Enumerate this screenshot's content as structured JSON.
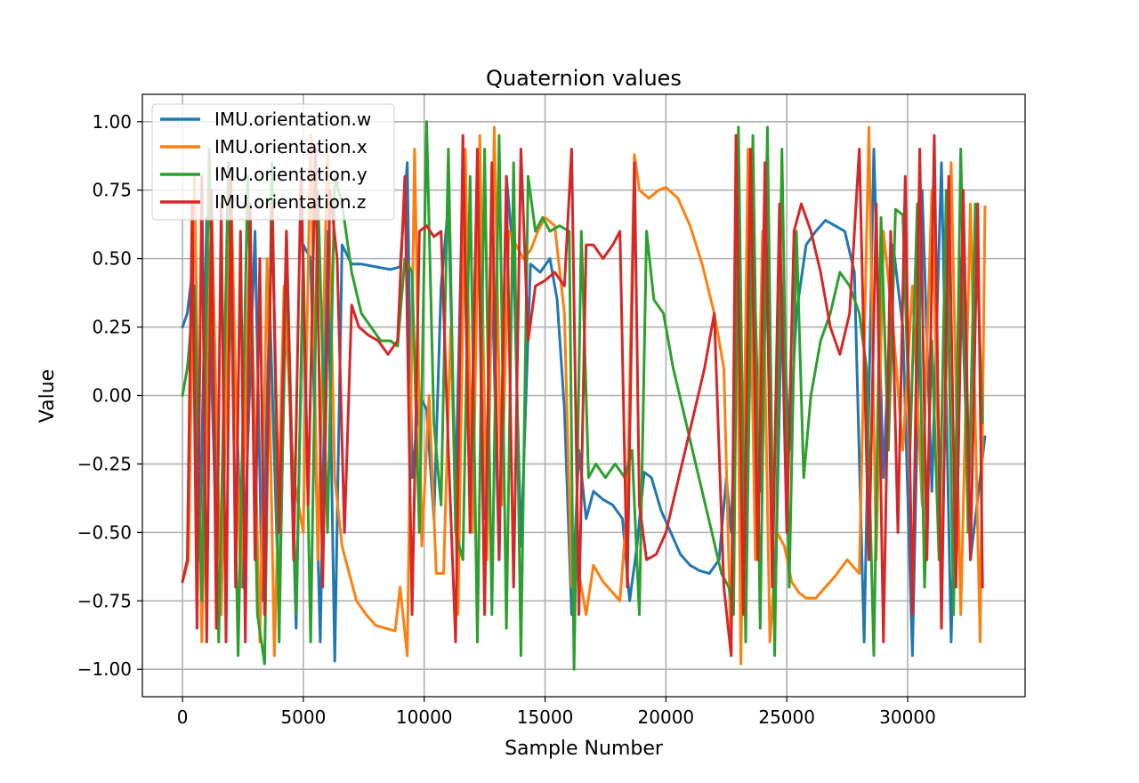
{
  "chart_data": {
    "type": "line",
    "title": "Quaternion values",
    "xlabel": "Sample Number",
    "ylabel": "Value",
    "xlim": [
      -1660,
      34860
    ],
    "ylim": [
      -1.1,
      1.1
    ],
    "xticks": [
      0,
      5000,
      10000,
      15000,
      20000,
      25000,
      30000
    ],
    "xtick_labels": [
      "0",
      "5000",
      "10000",
      "15000",
      "20000",
      "25000",
      "30000"
    ],
    "yticks": [
      -1.0,
      -0.75,
      -0.5,
      -0.25,
      0.0,
      0.25,
      0.5,
      0.75,
      1.0
    ],
    "ytick_labels": [
      "−1.00",
      "−0.75",
      "−0.50",
      "−0.25",
      "0.00",
      "0.25",
      "0.50",
      "0.75",
      "1.00"
    ],
    "grid": true,
    "legend_position": "top-left",
    "series": [
      {
        "name": "IMU.orientation.w",
        "color": "#1f77b4",
        "x": [
          0,
          200,
          400,
          700,
          1000,
          1500,
          2000,
          2500,
          3000,
          3300,
          3600,
          4000,
          4300,
          4700,
          5000,
          5300,
          5700,
          6000,
          6300,
          6600,
          7000,
          7400,
          8000,
          8600,
          9000,
          9300,
          9500,
          9800,
          10100,
          10400,
          10700,
          11000,
          11300,
          11600,
          11900,
          12200,
          12500,
          12800,
          13100,
          13400,
          13700,
          14000,
          14400,
          14800,
          15200,
          15500,
          15800,
          16100,
          16400,
          16700,
          17000,
          17400,
          17800,
          18200,
          18500,
          18800,
          19100,
          19400,
          19800,
          20200,
          20600,
          21000,
          21400,
          21800,
          22200,
          22500,
          22700,
          23000,
          23300,
          23600,
          23900,
          24200,
          24500,
          24800,
          25100,
          25400,
          25800,
          26200,
          26600,
          27000,
          27400,
          27800,
          28200,
          28600,
          29000,
          29400,
          29800,
          30200,
          30600,
          31000,
          31400,
          31800,
          32200,
          32600,
          33000,
          33200
        ],
        "y": [
          0.25,
          0.3,
          0.45,
          -0.6,
          0.65,
          -0.8,
          0.5,
          -0.7,
          0.6,
          -0.75,
          0.35,
          -0.8,
          0.45,
          -0.85,
          0.55,
          0.5,
          -0.9,
          0.6,
          -0.97,
          0.55,
          0.48,
          0.48,
          0.47,
          0.46,
          0.47,
          0.85,
          -0.3,
          0.0,
          -0.05,
          -0.45,
          0.4,
          0.7,
          -0.35,
          0.8,
          -0.4,
          0.85,
          -0.45,
          0.45,
          -0.6,
          0.8,
          0.5,
          -0.55,
          0.48,
          0.45,
          0.5,
          0.35,
          -0.05,
          -0.8,
          -0.2,
          -0.45,
          -0.35,
          -0.38,
          -0.4,
          -0.45,
          -0.75,
          -0.55,
          -0.28,
          -0.3,
          -0.42,
          -0.5,
          -0.58,
          -0.62,
          -0.64,
          -0.65,
          -0.6,
          -0.3,
          -0.5,
          0.4,
          -0.7,
          0.65,
          -0.35,
          0.55,
          -0.85,
          0.4,
          -0.2,
          0.3,
          0.55,
          0.6,
          0.64,
          0.62,
          0.6,
          0.45,
          -0.9,
          0.9,
          -0.3,
          0.55,
          0.25,
          -0.95,
          0.75,
          -0.35,
          0.85,
          -0.9,
          0.5,
          -0.6,
          -0.3,
          -0.15
        ]
      },
      {
        "name": "IMU.orientation.x",
        "color": "#ff7f0e",
        "x": [
          0,
          250,
          500,
          800,
          1200,
          1600,
          2000,
          2400,
          2800,
          3200,
          3500,
          3800,
          4200,
          4600,
          5000,
          5300,
          5600,
          6000,
          6300,
          6600,
          6900,
          7200,
          7600,
          8000,
          8400,
          8800,
          9000,
          9300,
          9600,
          9900,
          10200,
          10500,
          10800,
          11100,
          11400,
          11700,
          12000,
          12300,
          12600,
          12900,
          13200,
          13500,
          13800,
          14100,
          14400,
          14700,
          15000,
          15400,
          15800,
          16100,
          16400,
          16700,
          17000,
          17400,
          17800,
          18100,
          18400,
          18700,
          18900,
          19300,
          19700,
          20000,
          20500,
          21000,
          21500,
          22000,
          22400,
          22700,
          22900,
          23100,
          23400,
          23700,
          24000,
          24300,
          24600,
          24900,
          25200,
          25500,
          25800,
          26200,
          26600,
          27000,
          27500,
          28000,
          28400,
          28700,
          29000,
          29400,
          29800,
          30200,
          30600,
          31000,
          31400,
          31800,
          32200,
          32600,
          33000,
          33200
        ],
        "y": [
          -0.68,
          -0.6,
          0.8,
          -0.9,
          0.7,
          -0.8,
          0.8,
          -0.7,
          0.6,
          -0.9,
          0.5,
          -0.95,
          0.4,
          -0.3,
          -0.5,
          0.95,
          -0.6,
          0.9,
          -0.3,
          -0.55,
          -0.65,
          -0.75,
          -0.8,
          -0.84,
          -0.85,
          -0.86,
          -0.7,
          -0.95,
          0.9,
          -0.55,
          0.0,
          -0.65,
          -0.65,
          0.25,
          -0.8,
          0.9,
          -0.5,
          0.95,
          -0.6,
          0.98,
          -0.4,
          0.6,
          0.55,
          0.5,
          0.53,
          0.6,
          0.65,
          0.62,
          0.3,
          -0.7,
          -0.65,
          -0.8,
          -0.62,
          -0.68,
          -0.72,
          -0.75,
          -0.4,
          0.88,
          0.75,
          0.72,
          0.75,
          0.76,
          0.72,
          0.62,
          0.48,
          0.3,
          0.1,
          -0.95,
          0.8,
          -0.98,
          0.9,
          -0.6,
          0.6,
          -0.9,
          -0.5,
          -0.55,
          -0.68,
          -0.72,
          -0.74,
          -0.74,
          -0.7,
          -0.66,
          -0.6,
          -0.65,
          0.98,
          -0.6,
          0.6,
          0.25,
          -0.2,
          0.4,
          -0.4,
          0.75,
          -0.65,
          0.85,
          -0.8,
          0.7,
          -0.9,
          0.69
        ]
      },
      {
        "name": "IMU.orientation.y",
        "color": "#2ca02c",
        "x": [
          0,
          200,
          500,
          800,
          1100,
          1500,
          1900,
          2300,
          2700,
          3100,
          3400,
          3700,
          4000,
          4300,
          4700,
          5000,
          5300,
          5600,
          6000,
          6300,
          6600,
          7000,
          7400,
          7800,
          8200,
          8600,
          8900,
          9200,
          9500,
          9800,
          10100,
          10400,
          10700,
          11000,
          11300,
          11600,
          11900,
          12200,
          12500,
          12800,
          13100,
          13400,
          13700,
          14000,
          14300,
          14600,
          14900,
          15200,
          15600,
          16000,
          16200,
          16500,
          16800,
          17100,
          17500,
          17900,
          18300,
          18600,
          18900,
          19200,
          19500,
          19900,
          20300,
          20700,
          21100,
          21500,
          21900,
          22300,
          22600,
          22800,
          23000,
          23300,
          23600,
          23900,
          24200,
          24500,
          24800,
          25100,
          25400,
          25700,
          26000,
          26400,
          26800,
          27200,
          27600,
          28000,
          28300,
          28600,
          28900,
          29200,
          29500,
          29800,
          30100,
          30400,
          30700,
          31000,
          31300,
          31600,
          31900,
          32200,
          32500,
          32800,
          33100
        ],
        "y": [
          0.0,
          0.1,
          0.4,
          -0.75,
          0.9,
          -0.9,
          0.85,
          -0.95,
          0.8,
          -0.8,
          -0.98,
          0.85,
          -0.9,
          0.6,
          -0.8,
          0.5,
          -0.9,
          0.75,
          -0.5,
          0.8,
          0.7,
          0.45,
          0.3,
          0.25,
          0.2,
          0.2,
          0.18,
          0.5,
          0.45,
          -0.5,
          1.0,
          -0.1,
          -0.4,
          0.9,
          -0.5,
          -0.6,
          0.8,
          -0.9,
          0.9,
          -0.8,
          0.95,
          -0.85,
          0.85,
          -0.95,
          0.8,
          0.6,
          0.65,
          0.6,
          0.62,
          0.6,
          -1.0,
          0.6,
          -0.3,
          -0.25,
          -0.3,
          -0.25,
          -0.3,
          -0.2,
          -0.8,
          0.6,
          0.35,
          0.3,
          0.1,
          -0.05,
          -0.2,
          -0.35,
          -0.5,
          -0.65,
          -0.7,
          -0.8,
          0.98,
          -0.9,
          0.95,
          -0.85,
          0.98,
          -0.95,
          0.9,
          -0.7,
          0.6,
          -0.3,
          0.0,
          0.2,
          0.3,
          0.45,
          0.4,
          0.3,
          0.1,
          -0.95,
          0.65,
          -0.2,
          0.68,
          0.66,
          -0.2,
          0.7,
          -0.7,
          0.2,
          -0.6,
          0.75,
          -0.8,
          0.9,
          -0.5,
          0.7,
          -0.1
        ]
      },
      {
        "name": "IMU.orientation.z",
        "color": "#d62728",
        "x": [
          0,
          200,
          400,
          600,
          800,
          1000,
          1200,
          1400,
          1600,
          1800,
          2000,
          2200,
          2400,
          2600,
          2800,
          3000,
          3200,
          3400,
          3700,
          4000,
          4300,
          4600,
          4900,
          5200,
          5500,
          5800,
          6100,
          6400,
          6700,
          7000,
          7300,
          7700,
          8100,
          8500,
          8900,
          9200,
          9500,
          9800,
          10100,
          10400,
          10700,
          11000,
          11300,
          11600,
          11900,
          12200,
          12500,
          12800,
          13100,
          13400,
          13700,
          14000,
          14300,
          14600,
          15000,
          15400,
          15800,
          16100,
          16400,
          16700,
          17000,
          17400,
          17800,
          18100,
          18400,
          18700,
          18900,
          19200,
          19600,
          20000,
          20400,
          20800,
          21200,
          21600,
          22000,
          22400,
          22700,
          22900,
          23200,
          23500,
          23800,
          24100,
          24400,
          24700,
          25000,
          25300,
          25600,
          26000,
          26400,
          26800,
          27200,
          27600,
          28000,
          28400,
          28700,
          29000,
          29300,
          29600,
          29900,
          30200,
          30500,
          30800,
          31100,
          31400,
          31700,
          32000,
          32300,
          32600,
          32900,
          33100
        ],
        "y": [
          -0.68,
          -0.6,
          0.7,
          -0.85,
          0.8,
          -0.9,
          0.75,
          -0.85,
          0.7,
          -0.9,
          0.8,
          -0.7,
          0.6,
          -0.9,
          0.7,
          -0.6,
          0.5,
          -0.8,
          0.7,
          -0.5,
          0.6,
          -0.6,
          0.8,
          -0.4,
          0.9,
          -0.7,
          0.75,
          0.5,
          -0.5,
          0.33,
          0.25,
          0.22,
          0.2,
          0.15,
          0.2,
          0.8,
          -0.8,
          0.6,
          0.62,
          0.58,
          0.6,
          -0.2,
          -0.9,
          0.95,
          -0.5,
          0.9,
          -0.8,
          0.85,
          -0.6,
          0.8,
          -0.7,
          0.9,
          0.2,
          0.4,
          0.42,
          0.45,
          0.4,
          0.9,
          -0.8,
          0.55,
          0.55,
          0.5,
          0.55,
          0.6,
          -0.7,
          0.85,
          -0.4,
          -0.6,
          -0.58,
          -0.5,
          -0.35,
          -0.2,
          -0.05,
          0.1,
          0.3,
          -0.7,
          -0.95,
          0.95,
          -0.8,
          0.9,
          -0.6,
          0.85,
          -0.7,
          0.7,
          -0.5,
          0.6,
          0.7,
          0.6,
          0.45,
          0.25,
          0.15,
          0.3,
          0.9,
          -0.6,
          0.7,
          -0.9,
          0.6,
          -0.5,
          0.8,
          -0.8,
          0.9,
          -0.6,
          0.95,
          -0.85,
          0.8,
          -0.7,
          0.75,
          -0.6,
          0.7,
          -0.7
        ]
      }
    ]
  }
}
